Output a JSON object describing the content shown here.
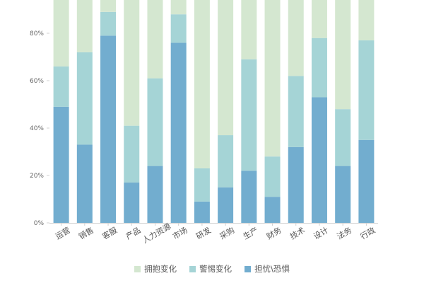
{
  "chart_data": {
    "type": "bar",
    "stacked": true,
    "categories": [
      "运营",
      "销售",
      "客服",
      "产品",
      "人力资源",
      "市场",
      "研发",
      "采购",
      "生产",
      "财务",
      "技术",
      "设计",
      "法务",
      "行政"
    ],
    "series": [
      {
        "name": "担忧\\恐惧",
        "color": "#72adcf",
        "values": [
          49,
          33,
          79,
          17,
          24,
          76,
          9,
          15,
          22,
          11,
          32,
          53,
          24,
          35
        ]
      },
      {
        "name": "警惕变化",
        "color": "#a5d4d6",
        "values": [
          17,
          39,
          10,
          24,
          37,
          12,
          14,
          22,
          47,
          17,
          30,
          25,
          24,
          42
        ]
      },
      {
        "name": "拥抱变化",
        "color": "#d4e7d0",
        "values": [
          34,
          28,
          11,
          59,
          39,
          12,
          77,
          63,
          31,
          72,
          38,
          22,
          52,
          23
        ]
      }
    ],
    "legend_order": [
      "拥抱变化",
      "警惕变化",
      "担忧\\恐惧"
    ],
    "y_ticks": [
      "0%",
      "20%",
      "40%",
      "60%",
      "80%"
    ],
    "ylim": [
      0,
      100
    ],
    "y_format": "percent",
    "grid": false,
    "legend_position": "bottom"
  }
}
